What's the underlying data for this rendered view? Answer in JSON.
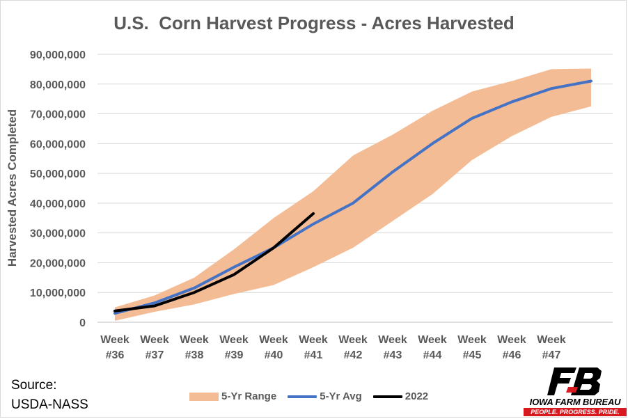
{
  "chart_data": {
    "type": "area",
    "title": "U.S.  Corn Harvest Progress - Acres Harvested",
    "ylabel": "Harvested Acres Completed",
    "xlabel": "",
    "categories": [
      "Week #36",
      "Week #37",
      "Week #38",
      "Week #39",
      "Week #40",
      "Week #41",
      "Week #42",
      "Week #43",
      "Week #44",
      "Week #45",
      "Week #46",
      "Week #47",
      ""
    ],
    "ylim": [
      0,
      90000000
    ],
    "yticks": [
      0,
      10000000,
      20000000,
      30000000,
      40000000,
      50000000,
      60000000,
      70000000,
      80000000,
      90000000
    ],
    "ytick_labels": [
      "0",
      "10,000,000",
      "20,000,000",
      "30,000,000",
      "40,000,000",
      "50,000,000",
      "60,000,000",
      "70,000,000",
      "80,000,000",
      "90,000,000"
    ],
    "grid": true,
    "legend_position": "bottom",
    "series": [
      {
        "name": "5-Yr Range",
        "kind": "band",
        "color": "#f4bc94",
        "upper": [
          5000000,
          9000000,
          15000000,
          24500000,
          35000000,
          44000000,
          56000000,
          63000000,
          71000000,
          77500000,
          81000000,
          85000000,
          85200000
        ],
        "lower": [
          500000,
          3500000,
          6000000,
          9500000,
          12500000,
          18500000,
          25000000,
          34000000,
          43000000,
          54500000,
          62500000,
          69000000,
          72500000
        ]
      },
      {
        "name": "5-Yr Avg",
        "kind": "line",
        "color": "#4472c4",
        "values": [
          3000000,
          6500000,
          11500000,
          18500000,
          25000000,
          33000000,
          40000000,
          50500000,
          60000000,
          68500000,
          74000000,
          78500000,
          81000000
        ]
      },
      {
        "name": "2022",
        "kind": "line",
        "color": "#000000",
        "values": [
          3800000,
          5500000,
          10000000,
          16000000,
          25000000,
          36500000,
          null,
          null,
          null,
          null,
          null,
          null,
          null
        ]
      }
    ]
  },
  "source": {
    "line1": "Source:",
    "line2": "USDA-NASS"
  },
  "logo": {
    "name": "IOWA FARM BUREAU",
    "tagline": "PEOPLE. PROGRESS. PRIDE.",
    "brand_color": "#d71920"
  }
}
